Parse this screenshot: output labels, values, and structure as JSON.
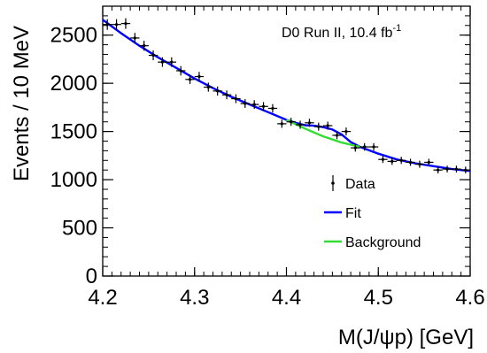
{
  "chart_data": {
    "type": "scatter",
    "title": "",
    "annotation": {
      "main": "D0 Run II, 10.4 fb",
      "superscript": "-1"
    },
    "xlabel": "M(J/ψp) [GeV]",
    "ylabel": "Events / 10 MeV",
    "xlim": [
      4.2,
      4.6
    ],
    "ylim": [
      0,
      2800
    ],
    "xticks": [
      4.2,
      4.3,
      4.4,
      4.5,
      4.6
    ],
    "xtick_labels": [
      "4.2",
      "4.3",
      "4.4",
      "4.5",
      "4.6"
    ],
    "yticks": [
      0,
      500,
      1000,
      1500,
      2000,
      2500
    ],
    "ytick_labels": [
      "0",
      "500",
      "1000",
      "1500",
      "2000",
      "2500"
    ],
    "grid": false,
    "legend_position": "bottom-right",
    "series": [
      {
        "name": "Data",
        "style": "points",
        "color": "#000000",
        "x": [
          4.205,
          4.215,
          4.225,
          4.235,
          4.245,
          4.255,
          4.265,
          4.275,
          4.285,
          4.295,
          4.305,
          4.315,
          4.325,
          4.335,
          4.345,
          4.355,
          4.365,
          4.375,
          4.385,
          4.395,
          4.405,
          4.415,
          4.425,
          4.435,
          4.445,
          4.455,
          4.465,
          4.475,
          4.485,
          4.495,
          4.505,
          4.515,
          4.525,
          4.535,
          4.545,
          4.555,
          4.565,
          4.575,
          4.585,
          4.595
        ],
        "y": [
          2610,
          2610,
          2620,
          2470,
          2390,
          2290,
          2220,
          2220,
          2130,
          2040,
          2070,
          1960,
          1920,
          1880,
          1840,
          1790,
          1780,
          1760,
          1740,
          1580,
          1600,
          1570,
          1590,
          1550,
          1560,
          1460,
          1500,
          1330,
          1340,
          1340,
          1210,
          1190,
          1200,
          1180,
          1160,
          1180,
          1100,
          1110,
          1110,
          1100
        ],
        "yerr": [
          55,
          55,
          55,
          53,
          52,
          51,
          50,
          50,
          49,
          48,
          48,
          47,
          47,
          46,
          46,
          45,
          45,
          45,
          44,
          42,
          42,
          42,
          42,
          42,
          42,
          40,
          41,
          39,
          39,
          39,
          37,
          37,
          37,
          37,
          37,
          37,
          35,
          35,
          35,
          35
        ]
      },
      {
        "name": "Fit",
        "style": "line",
        "color": "#0000ff",
        "x": [
          4.2,
          4.22,
          4.24,
          4.26,
          4.28,
          4.3,
          4.32,
          4.34,
          4.36,
          4.38,
          4.4,
          4.41,
          4.42,
          4.43,
          4.44,
          4.45,
          4.46,
          4.47,
          4.48,
          4.5,
          4.52,
          4.54,
          4.56,
          4.58,
          4.6
        ],
        "y": [
          2660,
          2520,
          2390,
          2270,
          2160,
          2050,
          1950,
          1860,
          1780,
          1700,
          1620,
          1590,
          1565,
          1560,
          1545,
          1520,
          1470,
          1390,
          1340,
          1270,
          1210,
          1170,
          1140,
          1110,
          1090
        ]
      },
      {
        "name": "Background",
        "style": "line",
        "color": "#33dd33",
        "x": [
          4.4,
          4.42,
          4.44,
          4.46,
          4.48
        ],
        "y": [
          1620,
          1530,
          1450,
          1385,
          1340
        ]
      }
    ],
    "legend": [
      {
        "label": "Data",
        "symbol": "point",
        "color": "#000000"
      },
      {
        "label": "Fit",
        "symbol": "line",
        "color": "#0000ff"
      },
      {
        "label": "Background",
        "symbol": "line",
        "color": "#33dd33"
      }
    ]
  }
}
